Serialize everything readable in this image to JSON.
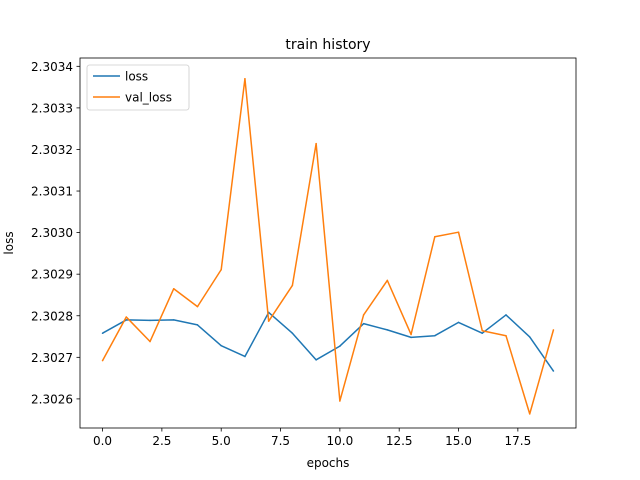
{
  "chart_data": {
    "type": "line",
    "title": "train history",
    "xlabel": "epochs",
    "ylabel": "loss",
    "xlim": [
      -0.95,
      19.95
    ],
    "ylim": [
      2.30253,
      2.30342
    ],
    "x_ticks": [
      0.0,
      2.5,
      5.0,
      7.5,
      10.0,
      12.5,
      15.0,
      17.5
    ],
    "x_tick_labels": [
      "0.0",
      "2.5",
      "5.0",
      "7.5",
      "10.0",
      "12.5",
      "15.0",
      "17.5"
    ],
    "y_ticks": [
      2.3026,
      2.3027,
      2.3028,
      2.3029,
      2.303,
      2.3031,
      2.3032,
      2.3033,
      2.3034
    ],
    "y_tick_labels": [
      "2.3026",
      "2.3027",
      "2.3028",
      "2.3029",
      "2.3030",
      "2.3031",
      "2.3032",
      "2.3033",
      "2.3034"
    ],
    "grid": false,
    "legend_placement": "top-left",
    "x": [
      0,
      1,
      2,
      3,
      4,
      5,
      6,
      7,
      8,
      9,
      10,
      11,
      12,
      13,
      14,
      15,
      16,
      17,
      18,
      19
    ],
    "series": [
      {
        "name": "loss",
        "color": "#1f77b4",
        "values": [
          2.302758,
          2.30279,
          2.302789,
          2.30279,
          2.302778,
          2.302728,
          2.302702,
          2.302808,
          2.302758,
          2.302694,
          2.302727,
          2.302781,
          2.302766,
          2.302748,
          2.302752,
          2.302784,
          2.302758,
          2.302802,
          2.302749,
          2.302667
        ]
      },
      {
        "name": "val_loss",
        "color": "#ff7f0e",
        "values": [
          2.302692,
          2.302797,
          2.302738,
          2.302865,
          2.302822,
          2.302911,
          2.30337,
          2.302787,
          2.302873,
          2.303214,
          2.302595,
          2.302802,
          2.302885,
          2.302755,
          2.30299,
          2.303001,
          2.302764,
          2.302752,
          2.302564,
          2.302766
        ]
      }
    ]
  }
}
